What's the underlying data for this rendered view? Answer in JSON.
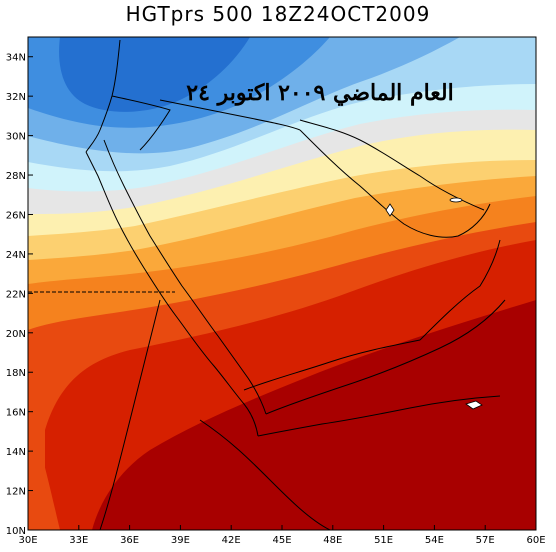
{
  "title": "HGTprs 500 18Z24OCT2009",
  "overlay_caption": "العام الماضي ٢٠٠٩ اكتوبر ٢٤",
  "map": {
    "lon_range": [
      30,
      60
    ],
    "lat_range": [
      10,
      35
    ],
    "x_ticks": [
      "30E",
      "33E",
      "36E",
      "39E",
      "42E",
      "45E",
      "48E",
      "51E",
      "54E",
      "57E",
      "60E"
    ],
    "y_ticks": [
      "10N",
      "12N",
      "14N",
      "16N",
      "18N",
      "20N",
      "22N",
      "24N",
      "26N",
      "28N",
      "30N",
      "32N",
      "34N"
    ],
    "colors": {
      "dark_red": "#a80000",
      "red": "#d62000",
      "red_orange": "#e84a10",
      "orange": "#f5821e",
      "light_orange": "#faa83a",
      "gold": "#fcd070",
      "pale_yellow": "#fdf0b0",
      "grey": "#e6e6e6",
      "pale_cyan": "#d0f3fb",
      "light_blue": "#a8d8f5",
      "sky_blue": "#6fb0ea",
      "blue": "#3f8ee0",
      "deep_blue": "#2470d0"
    }
  }
}
